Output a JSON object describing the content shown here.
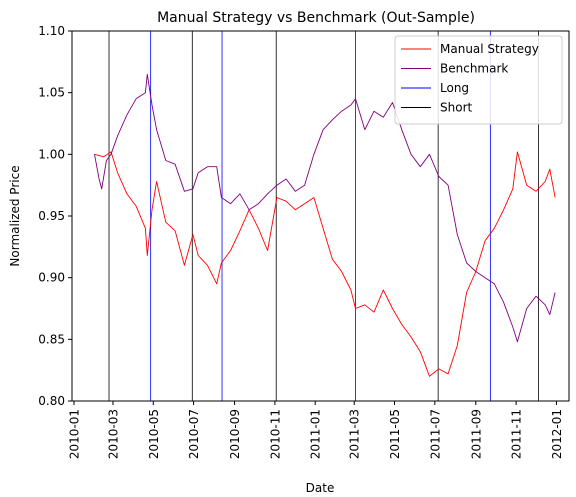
{
  "chart_data": {
    "type": "line",
    "title": "Manual Strategy vs Benchmark (Out-Sample)",
    "xlabel": "Date",
    "ylabel": "Normalized Price",
    "xlim": [
      "2009-12-29",
      "2012-01-20"
    ],
    "ylim": [
      0.8,
      1.1
    ],
    "x_ticks": [
      "2010-01",
      "2010-03",
      "2010-05",
      "2010-07",
      "2010-09",
      "2010-11",
      "2011-01",
      "2011-03",
      "2011-05",
      "2011-07",
      "2011-09",
      "2011-11",
      "2012-01"
    ],
    "y_ticks": [
      "0.80",
      "0.85",
      "0.90",
      "0.95",
      "1.00",
      "1.05",
      "1.10"
    ],
    "grid": false,
    "legend": {
      "placement": "top-right",
      "entries": [
        {
          "label": "Manual Strategy",
          "color": "#ff0000"
        },
        {
          "label": "Benchmark",
          "color": "#800080"
        },
        {
          "label": "Long",
          "color": "#0000ff"
        },
        {
          "label": "Short",
          "color": "#000000"
        }
      ]
    },
    "series": [
      {
        "name": "Manual Strategy",
        "color": "#ff0000",
        "points": [
          [
            "2010-02-01",
            1.0
          ],
          [
            "2010-02-15",
            0.998
          ],
          [
            "2010-02-26",
            1.002
          ],
          [
            "2010-03-08",
            0.985
          ],
          [
            "2010-03-22",
            0.968
          ],
          [
            "2010-04-05",
            0.958
          ],
          [
            "2010-04-19",
            0.94
          ],
          [
            "2010-04-22",
            0.918
          ],
          [
            "2010-04-29",
            0.955
          ],
          [
            "2010-05-06",
            0.978
          ],
          [
            "2010-05-20",
            0.945
          ],
          [
            "2010-06-03",
            0.938
          ],
          [
            "2010-06-17",
            0.91
          ],
          [
            "2010-06-30",
            0.935
          ],
          [
            "2010-07-08",
            0.918
          ],
          [
            "2010-07-22",
            0.91
          ],
          [
            "2010-08-05",
            0.895
          ],
          [
            "2010-08-12",
            0.912
          ],
          [
            "2010-08-26",
            0.922
          ],
          [
            "2010-09-09",
            0.938
          ],
          [
            "2010-09-23",
            0.955
          ],
          [
            "2010-10-07",
            0.94
          ],
          [
            "2010-10-21",
            0.922
          ],
          [
            "2010-11-04",
            0.965
          ],
          [
            "2010-11-18",
            0.962
          ],
          [
            "2010-12-02",
            0.955
          ],
          [
            "2010-12-16",
            0.96
          ],
          [
            "2010-12-30",
            0.965
          ],
          [
            "2011-01-13",
            0.94
          ],
          [
            "2011-01-27",
            0.915
          ],
          [
            "2011-02-10",
            0.905
          ],
          [
            "2011-02-24",
            0.89
          ],
          [
            "2011-03-03",
            0.875
          ],
          [
            "2011-03-17",
            0.878
          ],
          [
            "2011-03-31",
            0.872
          ],
          [
            "2011-04-14",
            0.89
          ],
          [
            "2011-04-28",
            0.875
          ],
          [
            "2011-05-12",
            0.862
          ],
          [
            "2011-05-26",
            0.852
          ],
          [
            "2011-06-09",
            0.84
          ],
          [
            "2011-06-23",
            0.82
          ],
          [
            "2011-07-07",
            0.826
          ],
          [
            "2011-07-21",
            0.822
          ],
          [
            "2011-08-04",
            0.845
          ],
          [
            "2011-08-18",
            0.888
          ],
          [
            "2011-09-01",
            0.905
          ],
          [
            "2011-09-15",
            0.93
          ],
          [
            "2011-09-29",
            0.94
          ],
          [
            "2011-10-13",
            0.955
          ],
          [
            "2011-10-27",
            0.972
          ],
          [
            "2011-11-03",
            1.002
          ],
          [
            "2011-11-17",
            0.975
          ],
          [
            "2011-12-01",
            0.97
          ],
          [
            "2011-12-15",
            0.978
          ],
          [
            "2011-12-22",
            0.988
          ],
          [
            "2011-12-30",
            0.965
          ]
        ]
      },
      {
        "name": "Benchmark",
        "color": "#800080",
        "points": [
          [
            "2010-02-01",
            1.0
          ],
          [
            "2010-02-08",
            0.98
          ],
          [
            "2010-02-12",
            0.972
          ],
          [
            "2010-02-19",
            0.995
          ],
          [
            "2010-02-26",
            1.0
          ],
          [
            "2010-03-08",
            1.015
          ],
          [
            "2010-03-22",
            1.032
          ],
          [
            "2010-04-05",
            1.045
          ],
          [
            "2010-04-19",
            1.05
          ],
          [
            "2010-04-22",
            1.065
          ],
          [
            "2010-04-29",
            1.04
          ],
          [
            "2010-05-06",
            1.02
          ],
          [
            "2010-05-20",
            0.995
          ],
          [
            "2010-06-03",
            0.992
          ],
          [
            "2010-06-17",
            0.97
          ],
          [
            "2010-06-30",
            0.972
          ],
          [
            "2010-07-08",
            0.985
          ],
          [
            "2010-07-22",
            0.99
          ],
          [
            "2010-08-05",
            0.99
          ],
          [
            "2010-08-12",
            0.965
          ],
          [
            "2010-08-26",
            0.96
          ],
          [
            "2010-09-09",
            0.968
          ],
          [
            "2010-09-23",
            0.955
          ],
          [
            "2010-10-07",
            0.96
          ],
          [
            "2010-10-21",
            0.968
          ],
          [
            "2010-11-04",
            0.975
          ],
          [
            "2010-11-18",
            0.98
          ],
          [
            "2010-12-02",
            0.97
          ],
          [
            "2010-12-16",
            0.975
          ],
          [
            "2010-12-30",
            1.0
          ],
          [
            "2011-01-13",
            1.02
          ],
          [
            "2011-01-27",
            1.028
          ],
          [
            "2011-02-10",
            1.035
          ],
          [
            "2011-02-24",
            1.04
          ],
          [
            "2011-03-03",
            1.045
          ],
          [
            "2011-03-17",
            1.02
          ],
          [
            "2011-03-31",
            1.035
          ],
          [
            "2011-04-14",
            1.03
          ],
          [
            "2011-04-28",
            1.042
          ],
          [
            "2011-05-12",
            1.02
          ],
          [
            "2011-05-26",
            1.0
          ],
          [
            "2011-06-09",
            0.99
          ],
          [
            "2011-06-23",
            1.0
          ],
          [
            "2011-07-07",
            0.982
          ],
          [
            "2011-07-21",
            0.975
          ],
          [
            "2011-08-04",
            0.935
          ],
          [
            "2011-08-18",
            0.912
          ],
          [
            "2011-09-01",
            0.905
          ],
          [
            "2011-09-15",
            0.9
          ],
          [
            "2011-09-29",
            0.895
          ],
          [
            "2011-10-13",
            0.88
          ],
          [
            "2011-10-27",
            0.86
          ],
          [
            "2011-11-03",
            0.848
          ],
          [
            "2011-11-17",
            0.875
          ],
          [
            "2011-12-01",
            0.885
          ],
          [
            "2011-12-15",
            0.878
          ],
          [
            "2011-12-22",
            0.87
          ],
          [
            "2011-12-30",
            0.888
          ]
        ]
      }
    ],
    "long_lines": [
      "2010-04-27",
      "2010-08-13",
      "2011-03-03",
      "2011-09-23"
    ],
    "short_lines": [
      "2010-02-23",
      "2010-06-29",
      "2010-11-03",
      "2011-07-06",
      "2011-12-05"
    ]
  }
}
